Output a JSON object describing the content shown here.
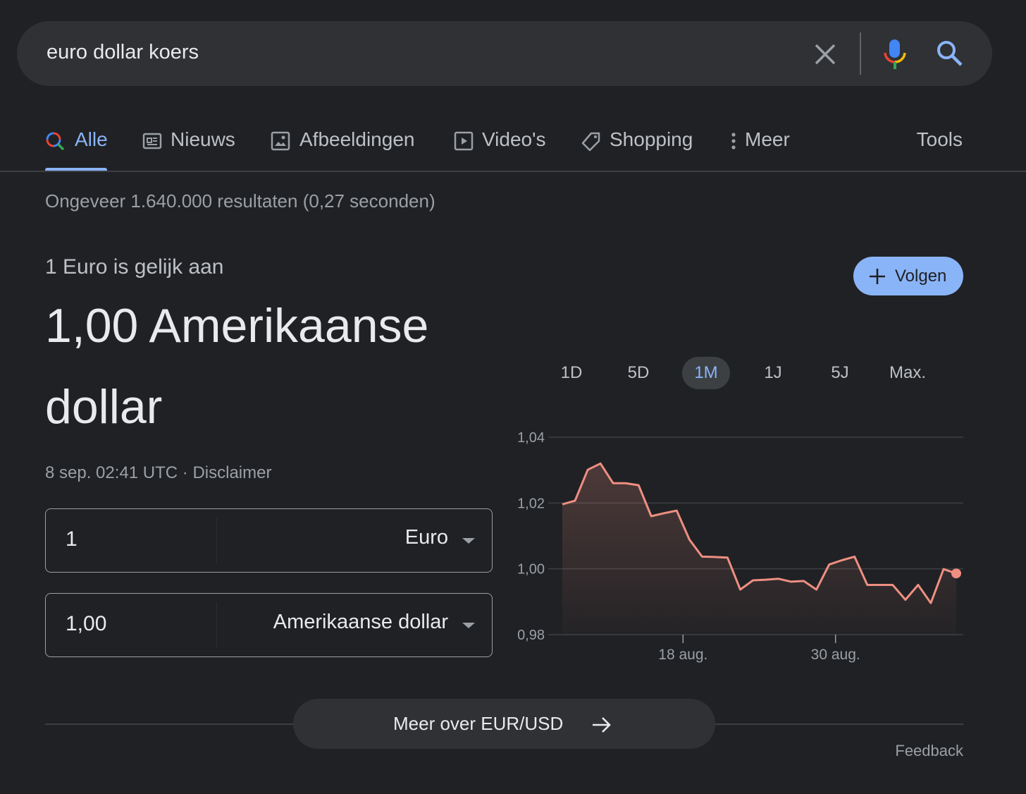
{
  "search": {
    "query": "euro dollar koers"
  },
  "tabs": [
    "Alle",
    "Nieuws",
    "Afbeeldingen",
    "Video's",
    "Shopping",
    "Meer"
  ],
  "tools": "Tools",
  "result_stats": "Ongeveer 1.640.000 resultaten (0,27 seconden)",
  "converter": {
    "intro": "1 Euro is gelijk aan",
    "result": "1,00 Amerikaanse dollar",
    "timestamp": "8 sep. 02:41 UTC",
    "separator": "·",
    "disclaimer": "Disclaimer",
    "follow": "Volgen",
    "from_amount": "1",
    "from_currency": "Euro",
    "to_amount": "1,00",
    "to_currency": "Amerikaanse dollar"
  },
  "ranges": [
    "1D",
    "5D",
    "1M",
    "1J",
    "5J",
    "Max."
  ],
  "chart_data": {
    "type": "line",
    "categories": [
      null,
      null,
      null,
      null,
      null,
      null,
      null,
      null,
      null,
      "18 aug.",
      null,
      null,
      null,
      null,
      null,
      null,
      null,
      null,
      null,
      null,
      null,
      "30 aug.",
      null,
      null,
      null,
      null,
      null,
      null,
      null,
      null,
      null,
      null
    ],
    "values": [
      1.0196,
      1.0207,
      1.0301,
      1.032,
      1.026,
      1.026,
      1.0254,
      1.016,
      1.0169,
      1.0177,
      1.0089,
      1.0037,
      1.0036,
      1.0034,
      0.9937,
      0.9965,
      0.9967,
      0.997,
      0.9961,
      0.9963,
      0.9937,
      1.0013,
      1.0026,
      1.0037,
      0.9951,
      0.9951,
      0.9951,
      0.9906,
      0.9951,
      0.9896,
      0.9999,
      0.9986
    ],
    "color": "#ee8f82",
    "ylim": [
      0.98,
      1.04
    ],
    "yticks": [
      {
        "value": 0.98,
        "label": "0,98"
      },
      {
        "value": 1.0,
        "label": "1,00"
      },
      {
        "value": 1.02,
        "label": "1,02"
      },
      {
        "value": 1.04,
        "label": "1,04"
      }
    ],
    "grid": true
  },
  "more_button": "Meer over EUR/USD",
  "feedback": "Feedback"
}
